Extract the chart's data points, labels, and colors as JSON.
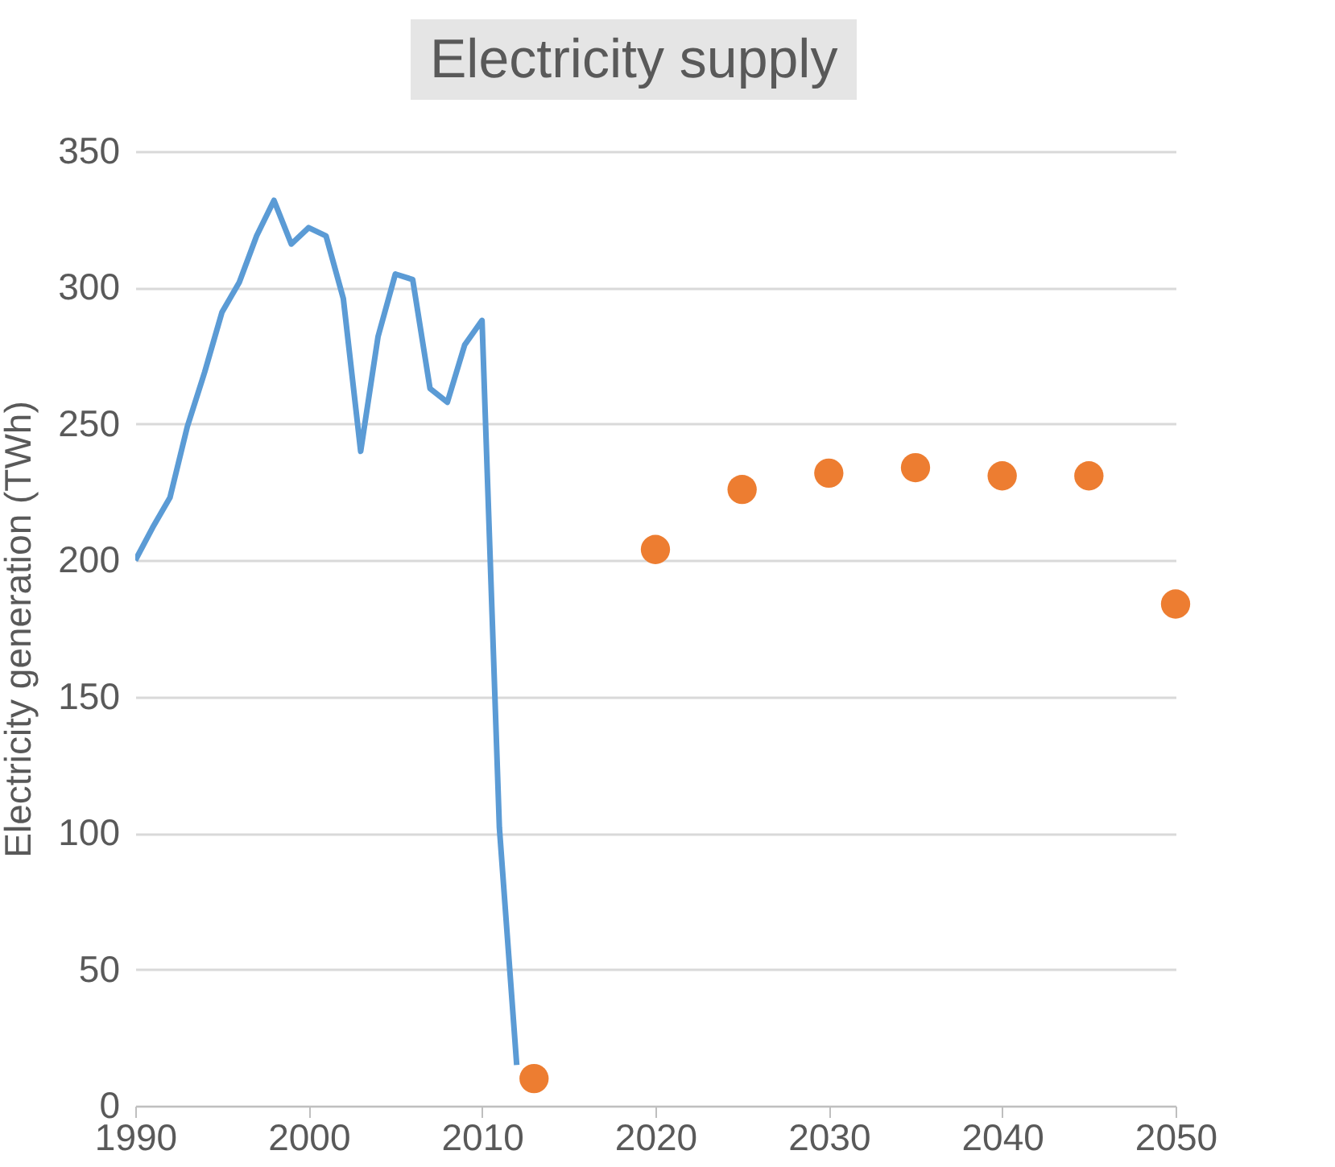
{
  "chart_data": {
    "type": "line",
    "title": "Electricity supply",
    "ylabel": "Electricity generation (TWh)",
    "xlim": [
      1990,
      2050
    ],
    "xticks": [
      1990,
      2000,
      2010,
      2020,
      2030,
      2040,
      2050
    ],
    "ylim": [
      0,
      350
    ],
    "yticks": [
      0,
      50,
      100,
      150,
      200,
      250,
      300,
      350
    ],
    "grid": "y",
    "legend": false,
    "series": [
      {
        "type": "line",
        "color": "#5b9bd5",
        "x": [
          1990,
          1991,
          1992,
          1993,
          1994,
          1995,
          1996,
          1997,
          1998,
          1999,
          2000,
          2001,
          2002,
          2003,
          2004,
          2005,
          2006,
          2007,
          2008,
          2009,
          2010,
          2011,
          2012
        ],
        "values": [
          200,
          212,
          223,
          249,
          269,
          291,
          302,
          319,
          332,
          316,
          322,
          319,
          296,
          240,
          282,
          305,
          303,
          263,
          258,
          279,
          288,
          102,
          15
        ]
      },
      {
        "type": "scatter",
        "marker": "circle",
        "color": "#ed7d31",
        "x": [
          2013,
          2020,
          2025,
          2030,
          2035,
          2040,
          2045,
          2050
        ],
        "values": [
          10,
          204,
          226,
          232,
          234,
          231,
          231,
          184
        ]
      }
    ]
  }
}
